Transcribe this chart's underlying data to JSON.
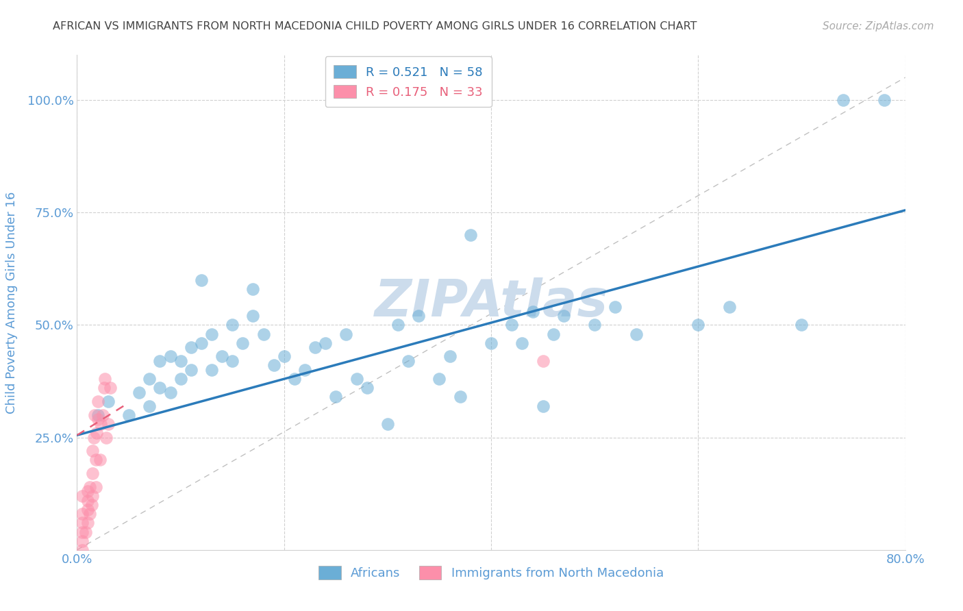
{
  "title": "AFRICAN VS IMMIGRANTS FROM NORTH MACEDONIA CHILD POVERTY AMONG GIRLS UNDER 16 CORRELATION CHART",
  "source": "Source: ZipAtlas.com",
  "ylabel": "Child Poverty Among Girls Under 16",
  "xlim": [
    0.0,
    0.8
  ],
  "ylim": [
    0.0,
    1.1
  ],
  "xticks": [
    0.0,
    0.2,
    0.4,
    0.6,
    0.8
  ],
  "xticklabels": [
    "0.0%",
    "",
    "",
    "",
    "80.0%"
  ],
  "yticks": [
    0.25,
    0.5,
    0.75,
    1.0
  ],
  "yticklabels": [
    "25.0%",
    "50.0%",
    "75.0%",
    "100.0%"
  ],
  "blue_R": 0.521,
  "blue_N": 58,
  "pink_R": 0.175,
  "pink_N": 33,
  "blue_color": "#6baed6",
  "pink_color": "#fc8faa",
  "blue_line_color": "#2b7bba",
  "pink_line_color": "#e8607a",
  "watermark": "ZIPAtlas",
  "blue_scatter_x": [
    0.02,
    0.03,
    0.05,
    0.06,
    0.07,
    0.07,
    0.08,
    0.08,
    0.09,
    0.09,
    0.1,
    0.1,
    0.11,
    0.11,
    0.12,
    0.12,
    0.13,
    0.13,
    0.14,
    0.15,
    0.15,
    0.16,
    0.17,
    0.17,
    0.18,
    0.19,
    0.2,
    0.21,
    0.22,
    0.23,
    0.24,
    0.25,
    0.26,
    0.27,
    0.28,
    0.3,
    0.31,
    0.32,
    0.33,
    0.35,
    0.36,
    0.37,
    0.38,
    0.4,
    0.42,
    0.43,
    0.44,
    0.45,
    0.46,
    0.47,
    0.5,
    0.52,
    0.54,
    0.6,
    0.63,
    0.7,
    0.74,
    0.78
  ],
  "blue_scatter_y": [
    0.3,
    0.33,
    0.3,
    0.35,
    0.32,
    0.38,
    0.36,
    0.42,
    0.35,
    0.43,
    0.38,
    0.42,
    0.4,
    0.45,
    0.46,
    0.6,
    0.4,
    0.48,
    0.43,
    0.42,
    0.5,
    0.46,
    0.52,
    0.58,
    0.48,
    0.41,
    0.43,
    0.38,
    0.4,
    0.45,
    0.46,
    0.34,
    0.48,
    0.38,
    0.36,
    0.28,
    0.5,
    0.42,
    0.52,
    0.38,
    0.43,
    0.34,
    0.7,
    0.46,
    0.5,
    0.46,
    0.53,
    0.32,
    0.48,
    0.52,
    0.5,
    0.54,
    0.48,
    0.5,
    0.54,
    0.5,
    1.0,
    1.0
  ],
  "pink_scatter_x": [
    0.005,
    0.005,
    0.005,
    0.005,
    0.005,
    0.005,
    0.008,
    0.01,
    0.01,
    0.01,
    0.01,
    0.012,
    0.012,
    0.014,
    0.015,
    0.015,
    0.015,
    0.016,
    0.017,
    0.018,
    0.018,
    0.019,
    0.02,
    0.02,
    0.022,
    0.023,
    0.025,
    0.026,
    0.027,
    0.028,
    0.03,
    0.032,
    0.45
  ],
  "pink_scatter_y": [
    0.0,
    0.02,
    0.04,
    0.06,
    0.08,
    0.12,
    0.04,
    0.06,
    0.09,
    0.11,
    0.13,
    0.08,
    0.14,
    0.1,
    0.12,
    0.17,
    0.22,
    0.25,
    0.3,
    0.14,
    0.2,
    0.26,
    0.29,
    0.33,
    0.2,
    0.28,
    0.3,
    0.36,
    0.38,
    0.25,
    0.28,
    0.36,
    0.42
  ],
  "grid_color": "#d0d0d0",
  "title_color": "#444444",
  "axis_label_color": "#5b9bd5",
  "tick_label_color": "#5b9bd5",
  "legend_text_color": "#5b9bd5",
  "watermark_color": "#ccdcec",
  "background_color": "#ffffff"
}
